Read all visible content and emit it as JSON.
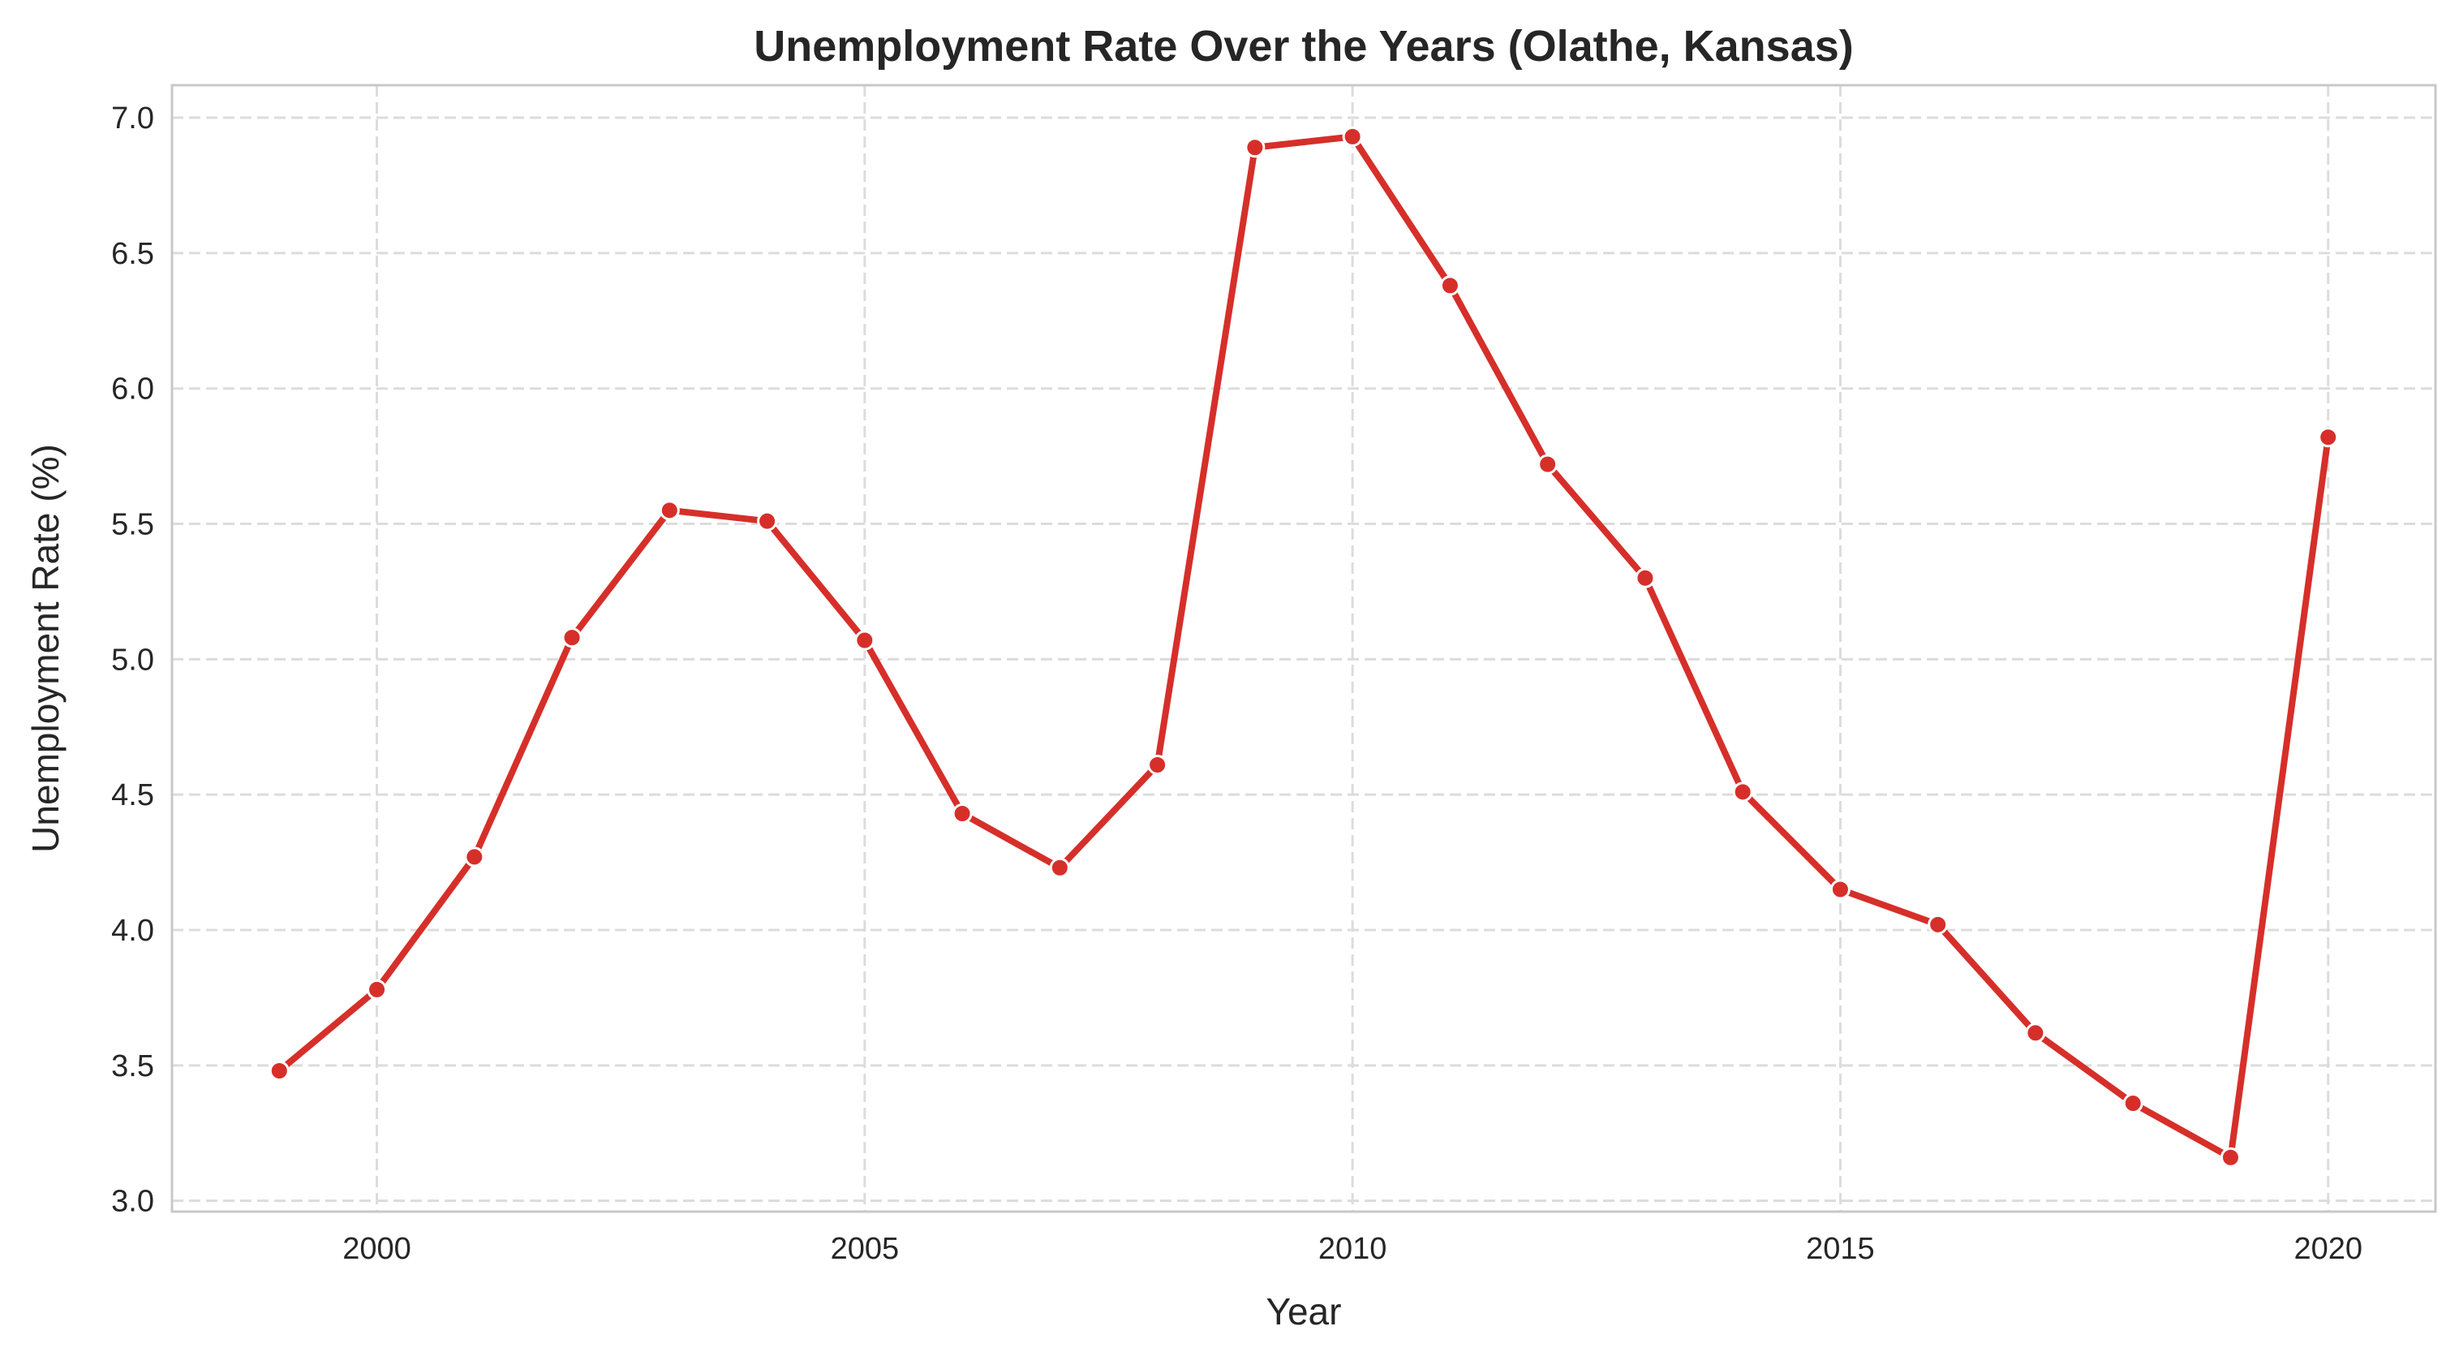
{
  "chart_data": {
    "type": "line",
    "title": "Unemployment Rate Over the Years (Olathe, Kansas)",
    "xlabel": "Year",
    "ylabel": "Unemployment Rate (%)",
    "xlim": [
      1997.9,
      2021.1
    ],
    "ylim": [
      2.96,
      7.12
    ],
    "xticks": [
      2000,
      2005,
      2010,
      2015,
      2020
    ],
    "yticks": [
      3.0,
      3.5,
      4.0,
      4.5,
      5.0,
      5.5,
      6.0,
      6.5,
      7.0
    ],
    "ytick_labels": [
      "3.0",
      "3.5",
      "4.0",
      "4.5",
      "5.0",
      "5.5",
      "6.0",
      "6.5",
      "7.0"
    ],
    "grid": true,
    "line_color": "#d62f2a",
    "series": [
      {
        "x": [
          1999,
          2000,
          2001,
          2002,
          2003,
          2004,
          2005,
          2006,
          2007,
          2008,
          2009,
          2010,
          2011,
          2012,
          2013,
          2014,
          2015,
          2016,
          2017,
          2018,
          2019,
          2020
        ],
        "values": [
          3.48,
          3.78,
          4.27,
          5.08,
          5.55,
          5.51,
          5.07,
          4.43,
          4.23,
          4.61,
          6.89,
          6.93,
          6.38,
          5.72,
          5.3,
          4.51,
          4.15,
          4.02,
          3.62,
          3.36,
          3.16,
          5.82
        ]
      }
    ]
  }
}
